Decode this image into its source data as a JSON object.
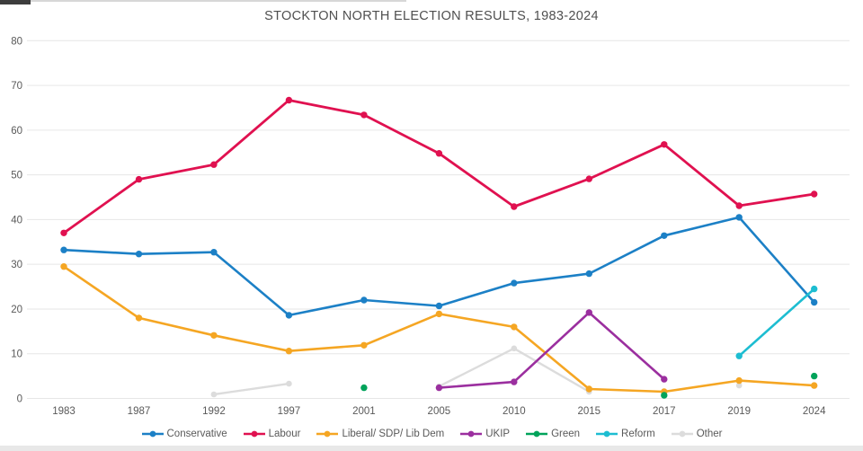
{
  "title": "STOCKTON NORTH ELECTION RESULTS, 1983-2024",
  "chart_data": {
    "type": "line",
    "categories": [
      "1983",
      "1987",
      "1992",
      "1997",
      "2001",
      "2005",
      "2010",
      "2015",
      "2017",
      "2019",
      "2024"
    ],
    "series": [
      {
        "name": "Conservative",
        "color": "#1c80c6",
        "values": [
          33.2,
          32.3,
          32.7,
          18.6,
          22.0,
          20.7,
          25.8,
          27.9,
          36.4,
          40.5,
          21.5
        ]
      },
      {
        "name": "Labour",
        "color": "#e01150",
        "values": [
          37.0,
          49.0,
          52.3,
          66.7,
          63.4,
          54.8,
          42.9,
          49.1,
          56.8,
          43.1,
          45.7
        ]
      },
      {
        "name": "Liberal/ SDP/ Lib Dem",
        "color": "#f5a623",
        "values": [
          29.5,
          18.0,
          14.1,
          10.6,
          11.9,
          18.9,
          16.0,
          2.1,
          1.5,
          4.0,
          2.9
        ]
      },
      {
        "name": "UKIP",
        "color": "#9b2f9f",
        "values": [
          null,
          null,
          null,
          null,
          null,
          2.4,
          3.7,
          19.2,
          4.3,
          null,
          null
        ]
      },
      {
        "name": "Green",
        "color": "#00a35a",
        "values": [
          null,
          null,
          null,
          null,
          2.4,
          null,
          null,
          null,
          0.7,
          null,
          5.0
        ]
      },
      {
        "name": "Reform",
        "color": "#1dbdd1",
        "values": [
          null,
          null,
          null,
          null,
          null,
          null,
          null,
          null,
          null,
          9.5,
          24.5
        ]
      },
      {
        "name": "Other",
        "color": "#dcdcdc",
        "values": [
          null,
          null,
          0.9,
          3.3,
          null,
          2.7,
          11.2,
          1.5,
          null,
          2.9,
          null
        ]
      }
    ],
    "title": "STOCKTON NORTH ELECTION RESULTS, 1983-2024",
    "xlabel": "",
    "ylabel": "",
    "ylim": [
      0,
      80
    ],
    "y_ticks": [
      0,
      10,
      20,
      30,
      40,
      50,
      60,
      70,
      80
    ],
    "grid": "horizontal",
    "legend_position": "bottom"
  },
  "colors": {
    "gridline": "#e6e6e6",
    "tick_label": "#595959",
    "title_text": "#4f4f4f"
  }
}
